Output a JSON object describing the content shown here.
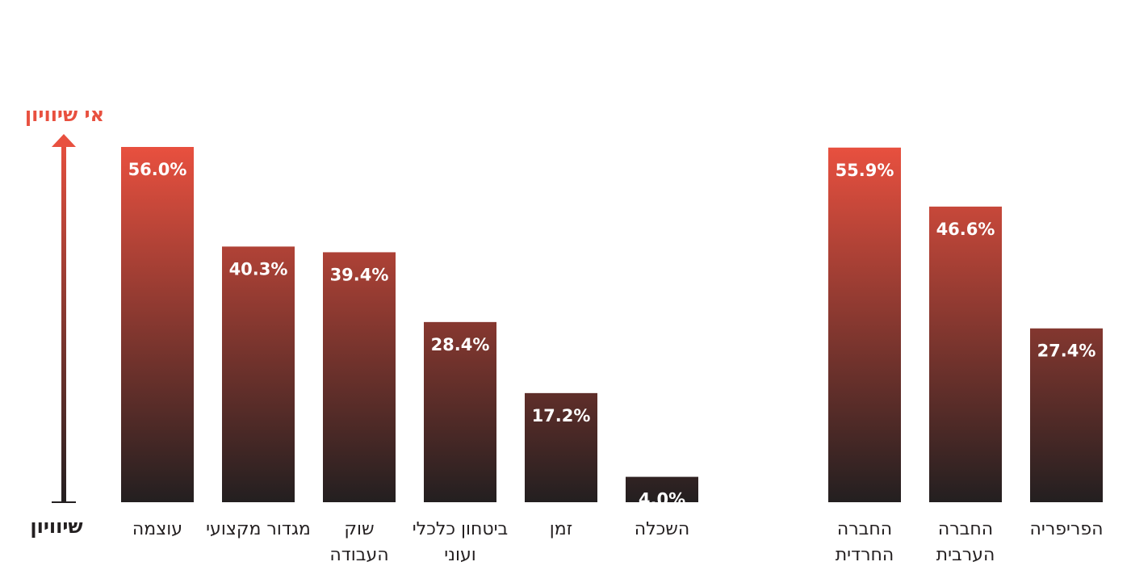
{
  "colors": {
    "bar_top": "#e8503f",
    "bar_bottom": "#231f20",
    "arrow": "#e8503f",
    "label_text": "#231f20",
    "value_text": "#ffffff"
  },
  "axis": {
    "top_label": "אי שיוויון",
    "bottom_label": "שיוויון"
  },
  "chart_data": [
    {
      "type": "bar",
      "categories": [
        [
          "עוצמה"
        ],
        [
          "מגדור מקצועי"
        ],
        [
          "שוק",
          "העבודה"
        ],
        [
          "ביטחון כלכלי",
          "ועוני"
        ],
        [
          "זמן"
        ],
        [
          "השכלה"
        ]
      ],
      "values": [
        56.0,
        40.3,
        39.4,
        28.4,
        17.2,
        4.0
      ],
      "value_labels": [
        "56.0%",
        "40.3%",
        "39.4%",
        "28.4%",
        "17.2%",
        "4.0%"
      ],
      "ylim": [
        0,
        56.0
      ],
      "grid": false
    },
    {
      "type": "bar",
      "categories": [
        [
          "החברה",
          "החרדית"
        ],
        [
          "החברה",
          "הערבית"
        ],
        [
          "הפריפריה"
        ]
      ],
      "values": [
        55.9,
        46.6,
        27.4
      ],
      "value_labels": [
        "55.9%",
        "46.6%",
        "27.4%"
      ],
      "ylim": [
        0,
        56.0
      ],
      "grid": false
    }
  ]
}
